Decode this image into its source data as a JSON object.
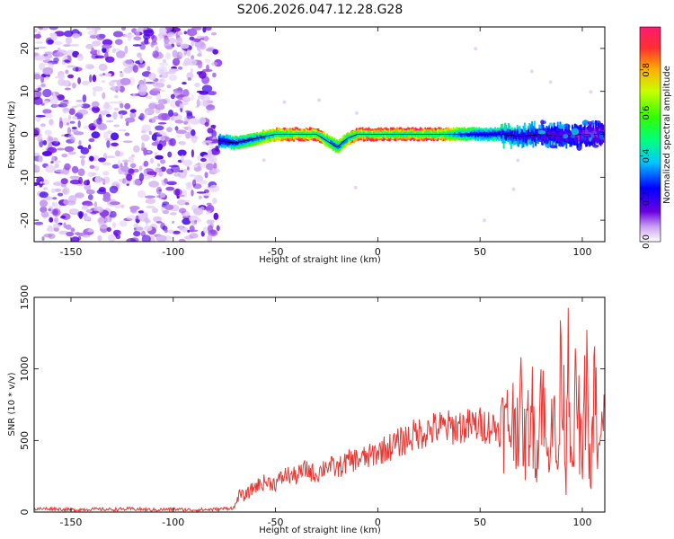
{
  "title": "S206.2026.047.12.28.G28",
  "chart_data": [
    {
      "type": "heatmap",
      "title": "S206.2026.047.12.28.G28",
      "xlabel": "Height of straight line (km)",
      "ylabel": "Frequency (Hz)",
      "xlim": [
        -168,
        111
      ],
      "ylim": [
        -25,
        25
      ],
      "xticks": [
        "-150",
        "-100",
        "-50",
        "0",
        "50",
        "100"
      ],
      "xtick_values": [
        -150,
        -100,
        -50,
        0,
        50,
        100
      ],
      "yticks": [
        "20",
        "10",
        "0",
        "-10",
        "-20"
      ],
      "ytick_values": [
        20,
        10,
        0,
        -10,
        -20
      ],
      "noise_region_x": [
        -168,
        -78
      ],
      "ridge": {
        "x": [
          -78,
          -70,
          -60,
          -50,
          -40,
          -30,
          -25,
          -20,
          -15,
          -10,
          -5,
          0,
          10,
          20,
          30,
          40,
          50,
          60,
          70,
          80,
          90,
          100,
          110
        ],
        "freq_hz": [
          -1.5,
          -2,
          -1,
          0,
          0,
          0,
          -1.5,
          -3,
          -1,
          0,
          0,
          0,
          0,
          0,
          0,
          0,
          0,
          0,
          -0.5,
          0,
          -0.5,
          0,
          0
        ],
        "amplitude": [
          0.35,
          0.5,
          0.6,
          0.8,
          0.95,
          0.9,
          0.7,
          0.6,
          0.75,
          0.9,
          0.95,
          0.95,
          0.9,
          0.95,
          0.9,
          0.6,
          0.45,
          0.45,
          0.4,
          0.35,
          0.3,
          0.25,
          0.2
        ]
      },
      "colorbar": {
        "label": "Normalized spectral amplitude",
        "ticks": [
          "0.0",
          "0.2",
          "0.4",
          "0.6",
          "0.8"
        ],
        "tick_values": [
          0,
          0.2,
          0.4,
          0.6,
          0.8
        ],
        "range": [
          0,
          1
        ]
      }
    },
    {
      "type": "line",
      "xlabel": "Height of straight line (km)",
      "ylabel": "SNR (10 * v/v)",
      "xlim": [
        -168,
        111
      ],
      "ylim": [
        0,
        1500
      ],
      "xticks": [
        "-150",
        "-100",
        "-50",
        "0",
        "50",
        "100"
      ],
      "xtick_values": [
        -150,
        -100,
        -50,
        0,
        50,
        100
      ],
      "yticks": [
        "0",
        "500",
        "1000",
        "1500"
      ],
      "ytick_values": [
        0,
        500,
        1000,
        1500
      ],
      "color": "#e53935",
      "series": [
        {
          "name": "SNR",
          "x": [
            -168,
            -160,
            -150,
            -140,
            -130,
            -120,
            -110,
            -100,
            -90,
            -80,
            -70,
            -68,
            -65,
            -60,
            -55,
            -50,
            -45,
            -40,
            -35,
            -30,
            -25,
            -20,
            -15,
            -10,
            -5,
            0,
            5,
            10,
            15,
            20,
            25,
            30,
            35,
            40,
            45,
            50,
            55,
            60,
            65,
            70,
            72,
            75,
            78,
            80,
            83,
            85,
            88,
            90,
            92,
            93,
            95,
            97,
            100,
            102,
            104,
            106,
            108,
            110
          ],
          "values": [
            20,
            25,
            15,
            20,
            18,
            22,
            15,
            20,
            15,
            18,
            30,
            120,
            110,
            180,
            210,
            200,
            260,
            250,
            300,
            260,
            330,
            300,
            350,
            370,
            380,
            420,
            450,
            480,
            520,
            550,
            570,
            590,
            590,
            600,
            600,
            610,
            600,
            580,
            620,
            700,
            450,
            750,
            400,
            950,
            300,
            850,
            250,
            1250,
            200,
            1500,
            150,
            900,
            300,
            1050,
            150,
            900,
            350,
            600
          ]
        }
      ]
    }
  ]
}
